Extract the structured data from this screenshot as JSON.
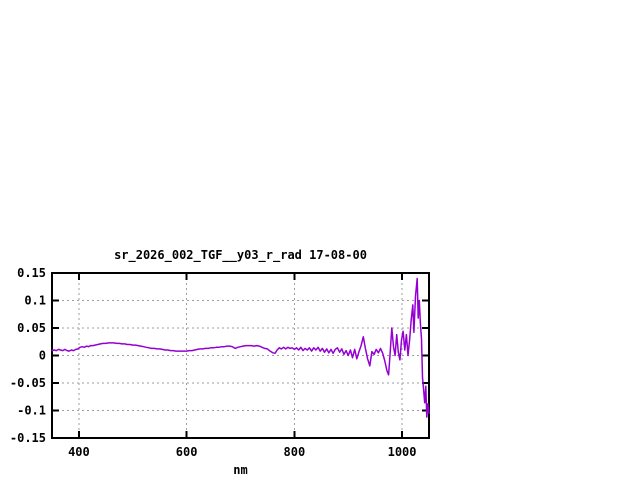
{
  "page": {
    "background_color": "#ffffff"
  },
  "chart": {
    "title": "sr_2026_002_TGF__y03_r_rad 17-08-00",
    "xlabel": "nm",
    "line_color": "#9400d3",
    "grid_color": "#9e9e9e",
    "frame_color": "#000000",
    "text_color": "#000000"
  },
  "chart_data": {
    "type": "line",
    "title": "sr_2026_002_TGF__y03_r_rad 17-08-00",
    "xlabel": "nm",
    "ylabel": "",
    "xlim": [
      350,
      1050
    ],
    "ylim": [
      -0.15,
      0.15
    ],
    "x_ticks": [
      400,
      600,
      800,
      1000
    ],
    "x_tick_labels": [
      "400",
      "600",
      "800",
      "1000"
    ],
    "y_ticks": [
      -0.15,
      -0.1,
      -0.05,
      0,
      0.05,
      0.1,
      0.15
    ],
    "y_tick_labels": [
      "-0.15",
      "-0.1",
      "-0.05",
      "0",
      "0.05",
      "0.1",
      "0.15"
    ],
    "grid": true,
    "legend": false,
    "points": [
      [
        350,
        0.009
      ],
      [
        354,
        0.01
      ],
      [
        358,
        0.009
      ],
      [
        362,
        0.011
      ],
      [
        366,
        0.01
      ],
      [
        370,
        0.009
      ],
      [
        374,
        0.011
      ],
      [
        378,
        0.009
      ],
      [
        382,
        0.008
      ],
      [
        386,
        0.01
      ],
      [
        390,
        0.009
      ],
      [
        394,
        0.011
      ],
      [
        398,
        0.012
      ],
      [
        402,
        0.015
      ],
      [
        406,
        0.016
      ],
      [
        410,
        0.015
      ],
      [
        414,
        0.017
      ],
      [
        418,
        0.016
      ],
      [
        422,
        0.018
      ],
      [
        426,
        0.018
      ],
      [
        430,
        0.019
      ],
      [
        435,
        0.02
      ],
      [
        440,
        0.021
      ],
      [
        445,
        0.022
      ],
      [
        450,
        0.022
      ],
      [
        455,
        0.023
      ],
      [
        460,
        0.023
      ],
      [
        465,
        0.023
      ],
      [
        470,
        0.022
      ],
      [
        475,
        0.022
      ],
      [
        480,
        0.021
      ],
      [
        485,
        0.021
      ],
      [
        490,
        0.02
      ],
      [
        495,
        0.02
      ],
      [
        500,
        0.019
      ],
      [
        505,
        0.019
      ],
      [
        510,
        0.018
      ],
      [
        515,
        0.017
      ],
      [
        520,
        0.016
      ],
      [
        525,
        0.015
      ],
      [
        530,
        0.014
      ],
      [
        535,
        0.013
      ],
      [
        540,
        0.013
      ],
      [
        545,
        0.012
      ],
      [
        550,
        0.012
      ],
      [
        555,
        0.011
      ],
      [
        560,
        0.01
      ],
      [
        565,
        0.01
      ],
      [
        570,
        0.009
      ],
      [
        575,
        0.009
      ],
      [
        580,
        0.008
      ],
      [
        585,
        0.008
      ],
      [
        590,
        0.008
      ],
      [
        595,
        0.008
      ],
      [
        600,
        0.008
      ],
      [
        605,
        0.009
      ],
      [
        610,
        0.009
      ],
      [
        615,
        0.01
      ],
      [
        620,
        0.011
      ],
      [
        625,
        0.012
      ],
      [
        630,
        0.012
      ],
      [
        635,
        0.013
      ],
      [
        640,
        0.013
      ],
      [
        645,
        0.014
      ],
      [
        650,
        0.014
      ],
      [
        655,
        0.015
      ],
      [
        660,
        0.015
      ],
      [
        665,
        0.016
      ],
      [
        670,
        0.016
      ],
      [
        675,
        0.017
      ],
      [
        680,
        0.017
      ],
      [
        685,
        0.016
      ],
      [
        690,
        0.013
      ],
      [
        695,
        0.015
      ],
      [
        700,
        0.016
      ],
      [
        705,
        0.017
      ],
      [
        710,
        0.018
      ],
      [
        715,
        0.018
      ],
      [
        720,
        0.018
      ],
      [
        725,
        0.017
      ],
      [
        730,
        0.018
      ],
      [
        735,
        0.017
      ],
      [
        740,
        0.015
      ],
      [
        745,
        0.013
      ],
      [
        750,
        0.012
      ],
      [
        755,
        0.008
      ],
      [
        760,
        0.005
      ],
      [
        764,
        0.004
      ],
      [
        768,
        0.01
      ],
      [
        772,
        0.014
      ],
      [
        776,
        0.012
      ],
      [
        780,
        0.015
      ],
      [
        784,
        0.012
      ],
      [
        788,
        0.015
      ],
      [
        792,
        0.013
      ],
      [
        796,
        0.014
      ],
      [
        800,
        0.011
      ],
      [
        804,
        0.014
      ],
      [
        808,
        0.01
      ],
      [
        812,
        0.015
      ],
      [
        816,
        0.009
      ],
      [
        820,
        0.013
      ],
      [
        824,
        0.01
      ],
      [
        828,
        0.014
      ],
      [
        832,
        0.008
      ],
      [
        836,
        0.014
      ],
      [
        840,
        0.01
      ],
      [
        844,
        0.015
      ],
      [
        848,
        0.008
      ],
      [
        852,
        0.013
      ],
      [
        856,
        0.006
      ],
      [
        860,
        0.012
      ],
      [
        864,
        0.005
      ],
      [
        868,
        0.011
      ],
      [
        872,
        0.004
      ],
      [
        876,
        0.011
      ],
      [
        880,
        0.014
      ],
      [
        884,
        0.006
      ],
      [
        888,
        0.012
      ],
      [
        892,
        0.002
      ],
      [
        896,
        0.009
      ],
      [
        900,
        0.0
      ],
      [
        904,
        0.01
      ],
      [
        908,
        -0.004
      ],
      [
        912,
        0.011
      ],
      [
        916,
        -0.006
      ],
      [
        920,
        0.007
      ],
      [
        924,
        0.018
      ],
      [
        928,
        0.034
      ],
      [
        932,
        0.013
      ],
      [
        936,
        -0.006
      ],
      [
        940,
        -0.019
      ],
      [
        944,
        0.007
      ],
      [
        948,
        0.002
      ],
      [
        952,
        0.011
      ],
      [
        956,
        0.005
      ],
      [
        960,
        0.013
      ],
      [
        964,
        0.004
      ],
      [
        968,
        -0.01
      ],
      [
        972,
        -0.028
      ],
      [
        975,
        -0.035
      ],
      [
        978,
        0.006
      ],
      [
        981,
        0.05
      ],
      [
        984,
        0.016
      ],
      [
        987,
        0.0
      ],
      [
        990,
        0.038
      ],
      [
        993,
        0.006
      ],
      [
        996,
        -0.008
      ],
      [
        999,
        0.028
      ],
      [
        1002,
        0.044
      ],
      [
        1005,
        0.01
      ],
      [
        1008,
        0.038
      ],
      [
        1011,
        0.0
      ],
      [
        1014,
        0.028
      ],
      [
        1017,
        0.065
      ],
      [
        1020,
        0.092
      ],
      [
        1022,
        0.042
      ],
      [
        1025,
        0.108
      ],
      [
        1028,
        0.14
      ],
      [
        1030,
        0.068
      ],
      [
        1032,
        0.1
      ],
      [
        1034,
        0.058
      ],
      [
        1036,
        0.03
      ],
      [
        1038,
        -0.04
      ],
      [
        1040,
        -0.062
      ],
      [
        1042,
        -0.086
      ],
      [
        1044,
        -0.056
      ],
      [
        1046,
        -0.112
      ],
      [
        1048,
        -0.088
      ],
      [
        1050,
        -0.105
      ]
    ]
  }
}
